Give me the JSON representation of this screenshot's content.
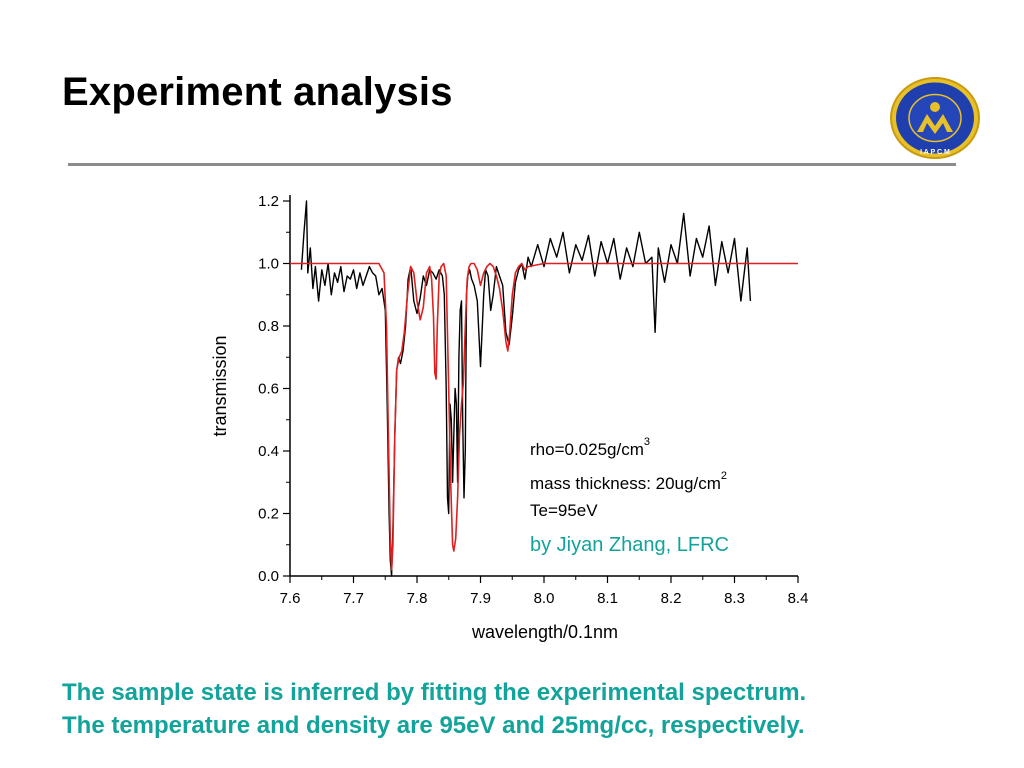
{
  "slide": {
    "title": "Experiment analysis",
    "caption_lines": [
      "The sample state is inferred by fitting the experimental spectrum.",
      "The temperature and density are 95eV and 25mg/cc, respectively."
    ],
    "logo_text": "I A P C M",
    "colors": {
      "caption": "#12a39a",
      "rule": "#8c8c8c",
      "logo_blue": "#1f3fae",
      "logo_gold": "#e0b21e"
    }
  },
  "chart_data": {
    "type": "line",
    "title": "",
    "xlabel": "wavelength/0.1nm",
    "ylabel": "transmission",
    "xlim": [
      7.6,
      8.4
    ],
    "ylim": [
      0.0,
      1.2
    ],
    "xticks": [
      "7.6",
      "7.7",
      "7.8",
      "7.9",
      "8.0",
      "8.1",
      "8.2",
      "8.3",
      "8.4"
    ],
    "yticks": [
      "0.0",
      "0.2",
      "0.4",
      "0.6",
      "0.8",
      "1.0",
      "1.2"
    ],
    "grid": false,
    "annotations": {
      "rho_text": "rho=0.025g/cm",
      "rho_sup": "3",
      "mass_text": "mass thickness: 20ug/cm",
      "mass_sup": "2",
      "te_text": "Te=95eV",
      "author": "by Jiyan Zhang, LFRC"
    },
    "series": [
      {
        "color": "#000000",
        "x": [
          7.618,
          7.622,
          7.626,
          7.628,
          7.632,
          7.636,
          7.64,
          7.645,
          7.65,
          7.655,
          7.66,
          7.665,
          7.67,
          7.675,
          7.68,
          7.685,
          7.69,
          7.695,
          7.7,
          7.705,
          7.71,
          7.715,
          7.72,
          7.725,
          7.73,
          7.735,
          7.74,
          7.745,
          7.75,
          7.753,
          7.756,
          7.758,
          7.76,
          7.762,
          7.765,
          7.768,
          7.771,
          7.774,
          7.778,
          7.782,
          7.786,
          7.79,
          7.795,
          7.8,
          7.805,
          7.81,
          7.815,
          7.82,
          7.825,
          7.83,
          7.835,
          7.84,
          7.843,
          7.846,
          7.848,
          7.85,
          7.852,
          7.854,
          7.856,
          7.858,
          7.86,
          7.862,
          7.864,
          7.866,
          7.868,
          7.87,
          7.872,
          7.874,
          7.876,
          7.878,
          7.88,
          7.883,
          7.886,
          7.89,
          7.895,
          7.9,
          7.905,
          7.908,
          7.912,
          7.916,
          7.92,
          7.925,
          7.93,
          7.935,
          7.94,
          7.945,
          7.95,
          7.955,
          7.96,
          7.965,
          7.97,
          7.975,
          7.98,
          7.99,
          8.0,
          8.01,
          8.02,
          8.03,
          8.04,
          8.05,
          8.06,
          8.07,
          8.08,
          8.09,
          8.1,
          8.11,
          8.12,
          8.13,
          8.14,
          8.15,
          8.16,
          8.17,
          8.175,
          8.18,
          8.19,
          8.2,
          8.21,
          8.22,
          8.23,
          8.24,
          8.25,
          8.26,
          8.27,
          8.28,
          8.29,
          8.3,
          8.31,
          8.32,
          8.325
        ],
        "y": [
          0.98,
          1.1,
          1.2,
          0.97,
          1.05,
          0.92,
          0.99,
          0.88,
          0.98,
          0.93,
          1.0,
          0.9,
          0.97,
          0.94,
          0.99,
          0.91,
          0.96,
          0.95,
          0.98,
          0.92,
          0.97,
          0.93,
          0.96,
          0.99,
          0.97,
          0.96,
          0.9,
          0.92,
          0.85,
          0.55,
          0.2,
          0.05,
          0.0,
          0.15,
          0.45,
          0.66,
          0.7,
          0.68,
          0.72,
          0.8,
          0.95,
          0.99,
          0.88,
          0.84,
          0.89,
          0.96,
          0.93,
          0.98,
          0.97,
          0.95,
          0.98,
          0.96,
          0.9,
          0.6,
          0.25,
          0.2,
          0.55,
          0.5,
          0.3,
          0.45,
          0.6,
          0.55,
          0.3,
          0.7,
          0.85,
          0.88,
          0.5,
          0.25,
          0.4,
          0.9,
          0.96,
          0.98,
          0.95,
          0.93,
          0.88,
          0.67,
          0.9,
          0.98,
          0.96,
          0.85,
          0.9,
          0.99,
          0.96,
          0.93,
          0.78,
          0.74,
          0.83,
          0.94,
          0.98,
          1.0,
          0.95,
          1.02,
          0.99,
          1.06,
          0.99,
          1.08,
          1.02,
          1.1,
          0.97,
          1.06,
          1.01,
          1.09,
          0.96,
          1.07,
          1.0,
          1.08,
          0.95,
          1.05,
          0.99,
          1.1,
          1.0,
          1.02,
          0.78,
          1.05,
          0.94,
          1.06,
          1.0,
          1.16,
          0.96,
          1.08,
          1.02,
          1.12,
          0.93,
          1.07,
          0.97,
          1.08,
          0.88,
          1.05,
          0.88
        ]
      },
      {
        "color": "#e02020",
        "x": [
          7.6,
          7.74,
          7.748,
          7.752,
          7.755,
          7.758,
          7.76,
          7.762,
          7.765,
          7.768,
          7.772,
          7.776,
          7.78,
          7.785,
          7.79,
          7.795,
          7.8,
          7.805,
          7.81,
          7.815,
          7.82,
          7.823,
          7.826,
          7.828,
          7.83,
          7.832,
          7.835,
          7.838,
          7.842,
          7.846,
          7.85,
          7.853,
          7.856,
          7.858,
          7.861,
          7.864,
          7.867,
          7.87,
          7.873,
          7.876,
          7.879,
          7.882,
          7.885,
          7.89,
          7.895,
          7.9,
          7.905,
          7.91,
          7.915,
          7.92,
          7.925,
          7.93,
          7.935,
          7.94,
          7.943,
          7.946,
          7.95,
          7.955,
          7.96,
          7.965,
          7.97,
          7.975,
          8.0,
          8.4
        ],
        "y": [
          1.0,
          1.0,
          0.97,
          0.8,
          0.45,
          0.12,
          0.02,
          0.1,
          0.45,
          0.66,
          0.7,
          0.72,
          0.78,
          0.9,
          0.99,
          0.97,
          0.88,
          0.82,
          0.86,
          0.97,
          0.99,
          0.95,
          0.83,
          0.65,
          0.63,
          0.8,
          0.96,
          0.99,
          1.0,
          0.96,
          0.6,
          0.3,
          0.1,
          0.08,
          0.12,
          0.25,
          0.45,
          0.55,
          0.62,
          0.8,
          0.95,
          0.99,
          1.0,
          1.0,
          0.98,
          0.93,
          0.97,
          0.99,
          1.0,
          0.99,
          0.96,
          0.92,
          0.85,
          0.75,
          0.72,
          0.78,
          0.9,
          0.97,
          0.99,
          1.0,
          0.98,
          0.99,
          1.0,
          1.0
        ]
      }
    ]
  }
}
